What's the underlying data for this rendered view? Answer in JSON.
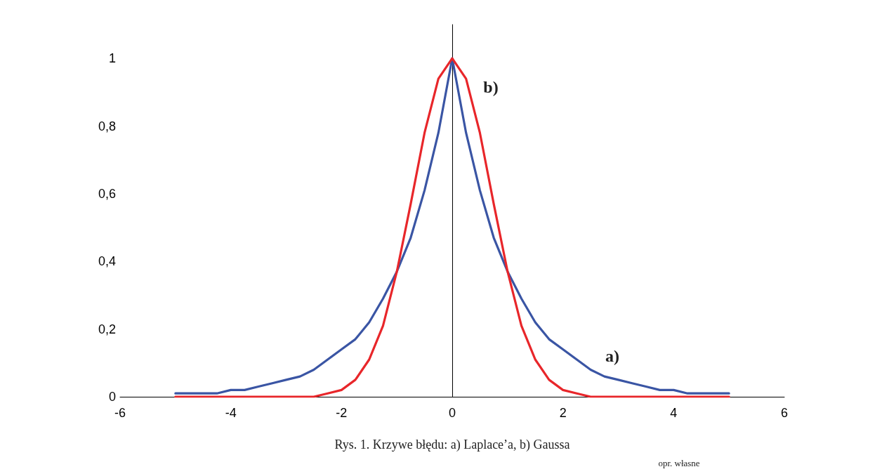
{
  "chart_data": {
    "type": "line",
    "x": [
      -5,
      -4.75,
      -4.5,
      -4.25,
      -4,
      -3.75,
      -3.5,
      -3.25,
      -3,
      -2.75,
      -2.5,
      -2.25,
      -2,
      -1.75,
      -1.5,
      -1.25,
      -1,
      -0.75,
      -0.5,
      -0.25,
      0,
      0.25,
      0.5,
      0.75,
      1,
      1.25,
      1.5,
      1.75,
      2,
      2.25,
      2.5,
      2.75,
      3,
      3.25,
      3.5,
      3.75,
      4,
      4.25,
      4.5,
      4.75,
      5
    ],
    "series": [
      {
        "color": "#3a55a4",
        "values": [
          0.01,
          0.01,
          0.01,
          0.01,
          0.02,
          0.02,
          0.03,
          0.04,
          0.05,
          0.06,
          0.08,
          0.11,
          0.14,
          0.17,
          0.22,
          0.29,
          0.37,
          0.47,
          0.61,
          0.78,
          1,
          0.78,
          0.61,
          0.47,
          0.37,
          0.29,
          0.22,
          0.17,
          0.14,
          0.11,
          0.08,
          0.06,
          0.05,
          0.04,
          0.03,
          0.02,
          0.02,
          0.01,
          0.01,
          0.01,
          0.01
        ]
      },
      {
        "color": "#e8262a",
        "values": [
          0,
          0,
          0,
          0,
          0,
          0,
          0,
          0,
          0,
          0,
          0,
          0.01,
          0.02,
          0.05,
          0.11,
          0.21,
          0.37,
          0.57,
          0.78,
          0.94,
          1,
          0.94,
          0.78,
          0.57,
          0.37,
          0.21,
          0.11,
          0.05,
          0.02,
          0.01,
          0,
          0,
          0,
          0,
          0,
          0,
          0,
          0,
          0,
          0,
          0
        ]
      }
    ],
    "xlim": [
      -6,
      6
    ],
    "xticks": [
      -6,
      -4,
      -2,
      0,
      2,
      4,
      6
    ],
    "ylim": [
      0,
      1.1
    ],
    "yticks": [
      {
        "value": 0,
        "label": "0"
      },
      {
        "value": 0.2,
        "label": "0,2"
      },
      {
        "value": 0.4,
        "label": "0,4"
      },
      {
        "value": 0.6,
        "label": "0,6"
      },
      {
        "value": 0.8,
        "label": "0,8"
      },
      {
        "value": 1,
        "label": "1"
      }
    ],
    "marker": "none",
    "line_style": "solid",
    "annotations": [
      "a)",
      "b)",
      "Rys. 1. Krzywe błędu: a) Laplace’a, b) Gaussa",
      "opr. własne"
    ]
  }
}
